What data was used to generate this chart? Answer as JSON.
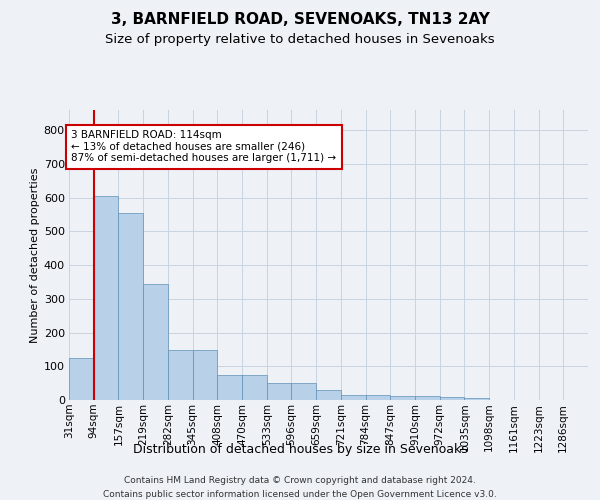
{
  "title1": "3, BARNFIELD ROAD, SEVENOAKS, TN13 2AY",
  "title2": "Size of property relative to detached houses in Sevenoaks",
  "xlabel": "Distribution of detached houses by size in Sevenoaks",
  "ylabel": "Number of detached properties",
  "bar_values": [
    125,
    605,
    555,
    345,
    148,
    148,
    75,
    75,
    50,
    50,
    30,
    15,
    15,
    12,
    12,
    8,
    5,
    0,
    0,
    0,
    0
  ],
  "bin_labels": [
    "31sqm",
    "94sqm",
    "157sqm",
    "219sqm",
    "282sqm",
    "345sqm",
    "408sqm",
    "470sqm",
    "533sqm",
    "596sqm",
    "659sqm",
    "721sqm",
    "784sqm",
    "847sqm",
    "910sqm",
    "972sqm",
    "1035sqm",
    "1098sqm",
    "1161sqm",
    "1223sqm",
    "1286sqm"
  ],
  "bar_color": "#b8d0e8",
  "bar_edge_color": "#6090b8",
  "vline_x": 1,
  "vline_color": "#cc0000",
  "annotation_text": "3 BARNFIELD ROAD: 114sqm\n← 13% of detached houses are smaller (246)\n87% of semi-detached houses are larger (1,711) →",
  "annotation_box_facecolor": "#ffffff",
  "annotation_box_edgecolor": "#cc0000",
  "ylim_max": 860,
  "yticks": [
    0,
    100,
    200,
    300,
    400,
    500,
    600,
    700,
    800
  ],
  "footer1": "Contains HM Land Registry data © Crown copyright and database right 2024.",
  "footer2": "Contains public sector information licensed under the Open Government Licence v3.0.",
  "bg_color": "#eef2f7",
  "grid_color": "#c8d4e0"
}
